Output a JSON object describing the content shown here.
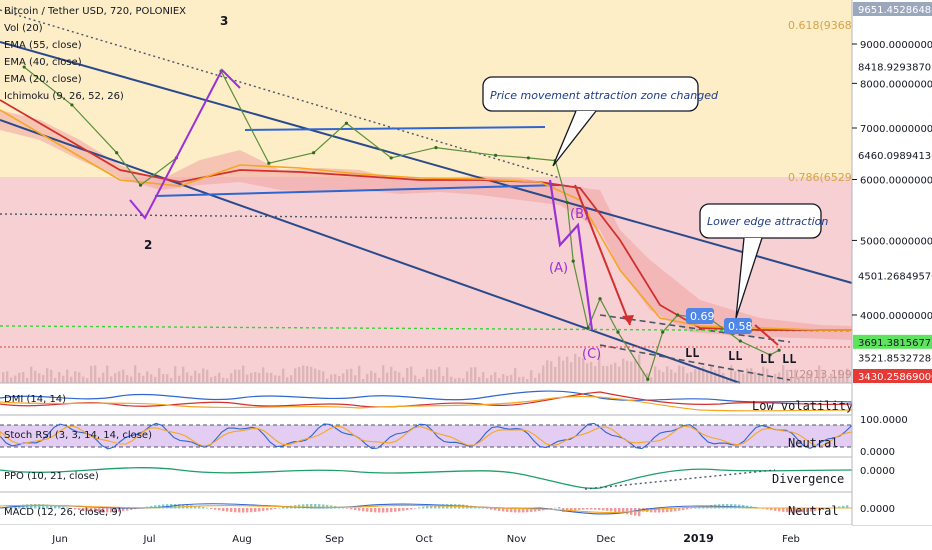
{
  "chart_data": [
    {
      "type": "line",
      "title": "Bitcoin / Tether USD, 720, POLONIEX",
      "indicators": [
        "Vol (20)",
        "EMA (55, close)",
        "EMA (40, close)",
        "EMA (20, close)",
        "Ichimoku (9, 26, 52, 26)"
      ],
      "x_ticks": [
        "Jun",
        "Jul",
        "Aug",
        "Sep",
        "Oct",
        "Nov",
        "Dec",
        "2019",
        "Feb"
      ],
      "y_scale": "log",
      "y_ticks": [
        "9000.00000000",
        "8000.00000000",
        "7000.00000000",
        "6000.00000000",
        "5000.00000000",
        "4000.00000000"
      ],
      "price_tags": [
        {
          "value": "9651.45286485",
          "color": "#9aa7bd",
          "text_color": "#ffffff"
        },
        {
          "value": "8418.92938703",
          "color": "#ffffff",
          "text_color": "#131722"
        },
        {
          "value": "6460.09894136",
          "color": "#ffffff",
          "text_color": "#131722"
        },
        {
          "value": "4501.26849570",
          "color": "#ffffff",
          "text_color": "#131722"
        },
        {
          "value": "3691.38156775",
          "color": "#5ee35e",
          "text_color": "#131722"
        },
        {
          "value": "3521.85327286",
          "color": "#ffffff",
          "text_color": "#131722"
        },
        {
          "value": "3430.25869000",
          "color": "#e53935",
          "text_color": "#ffffff"
        }
      ],
      "fib_labels": [
        "0.618(9368",
        "0.786(6529",
        "1(2913.1997"
      ],
      "price_series": {
        "x": [
          "2018-05-20",
          "2018-06-05",
          "2018-06-20",
          "2018-06-28",
          "2018-07-10",
          "2018-07-25",
          "2018-08-10",
          "2018-08-25",
          "2018-09-05",
          "2018-09-20",
          "2018-10-05",
          "2018-10-25",
          "2018-11-05",
          "2018-11-14",
          "2018-11-18",
          "2018-11-20",
          "2018-11-25",
          "2018-11-29",
          "2018-12-05",
          "2018-12-15",
          "2018-12-20",
          "2018-12-25",
          "2019-01-05",
          "2019-01-15",
          "2019-01-25",
          "2019-01-28"
        ],
        "y": [
          8400,
          7500,
          6500,
          5900,
          6400,
          8300,
          6300,
          6500,
          7100,
          6400,
          6600,
          6450,
          6400,
          6350,
          5600,
          4700,
          3850,
          4200,
          3800,
          3300,
          3800,
          4000,
          3950,
          3700,
          3550,
          3600
        ]
      },
      "wave_labels": [
        "2",
        "3",
        "(A)",
        "(B)",
        "(C)"
      ],
      "annotations": [
        "Price movement attraction zone changed",
        "Lower edge attraction",
        "0.69",
        "0.58"
      ],
      "ll_labels": [
        "LL",
        "LL",
        "LL",
        "LL"
      ]
    }
  ],
  "subpanes": [
    {
      "title": "DMI (14, 14)",
      "note": "Low volatility",
      "ticks": []
    },
    {
      "title": "Stoch RSI (3, 3, 14, 14, close)",
      "note": "Neutral",
      "ticks": [
        "100.0000",
        "0.0000"
      ]
    },
    {
      "title": "PPO (10, 21, close)",
      "note": "Divergence",
      "ticks": [
        "0.0000"
      ]
    },
    {
      "title": "MACD (12, 26, close, 9)",
      "note": "Neutral",
      "ticks": [
        "0.0000"
      ]
    }
  ],
  "colors": {
    "upper_zone": "#fdeec8",
    "lower_zone": "#f7d0d3",
    "channel": "#2a4a8c",
    "ema_red": "#d32f2f",
    "ema_orange": "#f5a623",
    "wave_purple": "#9b30d9",
    "stoch_bg": "#e4cdf3",
    "ll_text": "#131722"
  }
}
